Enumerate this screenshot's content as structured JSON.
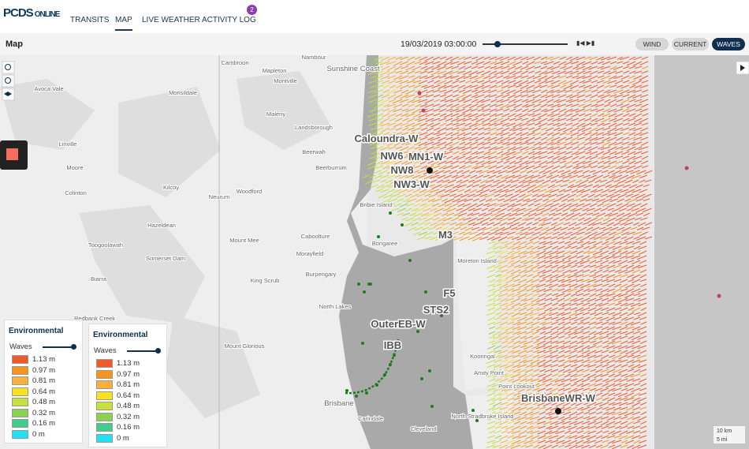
{
  "header": {
    "logo_main": "PCDS",
    "logo_sub": "ONLINE",
    "tabs": [
      "TRANSITS",
      "MAP",
      "LIVE WEATHER",
      "ACTIVITY LOG"
    ],
    "active_tab": 1,
    "badge": "2"
  },
  "toolbar": {
    "title": "Map",
    "datetime": "19/03/2019 03:00:00",
    "buttons": [
      "WIND",
      "CURRENT",
      "WAVES"
    ],
    "active_button": 2
  },
  "map": {
    "places": [
      "Nambour",
      "Sunshine Coast",
      "Cambroon",
      "Mapleton",
      "Montville",
      "Avoca Vale",
      "Monsildale",
      "Maleny",
      "Landsborough",
      "Linville",
      "Beerwah",
      "Moore",
      "Beerburrum",
      "Colinton",
      "Kilcoy",
      "Neurum",
      "Woodford",
      "Bribie Island",
      "Hazeldean",
      "Caboolture",
      "Toogoolawah",
      "Mount Mee",
      "Somerset Dam",
      "Morayfield",
      "Bongaree",
      "Burpengary",
      "King Scrub",
      "Biarra",
      "Moreton Island",
      "North Lakes",
      "Redbank Creek",
      "Mount Glorious",
      "Brisbane",
      "Carindale",
      "Cleveland",
      "North Stradbroke Island",
      "Amity Point",
      "Point Lookout",
      "Kooringal"
    ],
    "stations": [
      "Caloundra-W",
      "MN1-W",
      "NW6",
      "NW8",
      "NW3-W",
      "M3",
      "F5",
      "STS2",
      "OuterEB-W",
      "IBB",
      "BrisbaneWR-W"
    ],
    "scale": [
      "10 km",
      "5 mi"
    ]
  },
  "legend": {
    "title": "Environmental",
    "layer": "Waves",
    "items": [
      {
        "label": "1.13 m",
        "color": "#f05a28"
      },
      {
        "label": "0.97 m",
        "color": "#f7941d"
      },
      {
        "label": "0.81 m",
        "color": "#fbb03b"
      },
      {
        "label": "0.64 m",
        "color": "#f9e11e"
      },
      {
        "label": "0.48 m",
        "color": "#c8e03b"
      },
      {
        "label": "0.32 m",
        "color": "#8bd050"
      },
      {
        "label": "0.16 m",
        "color": "#3ecf8e"
      },
      {
        "label": "0 m",
        "color": "#22e0f0"
      }
    ]
  }
}
